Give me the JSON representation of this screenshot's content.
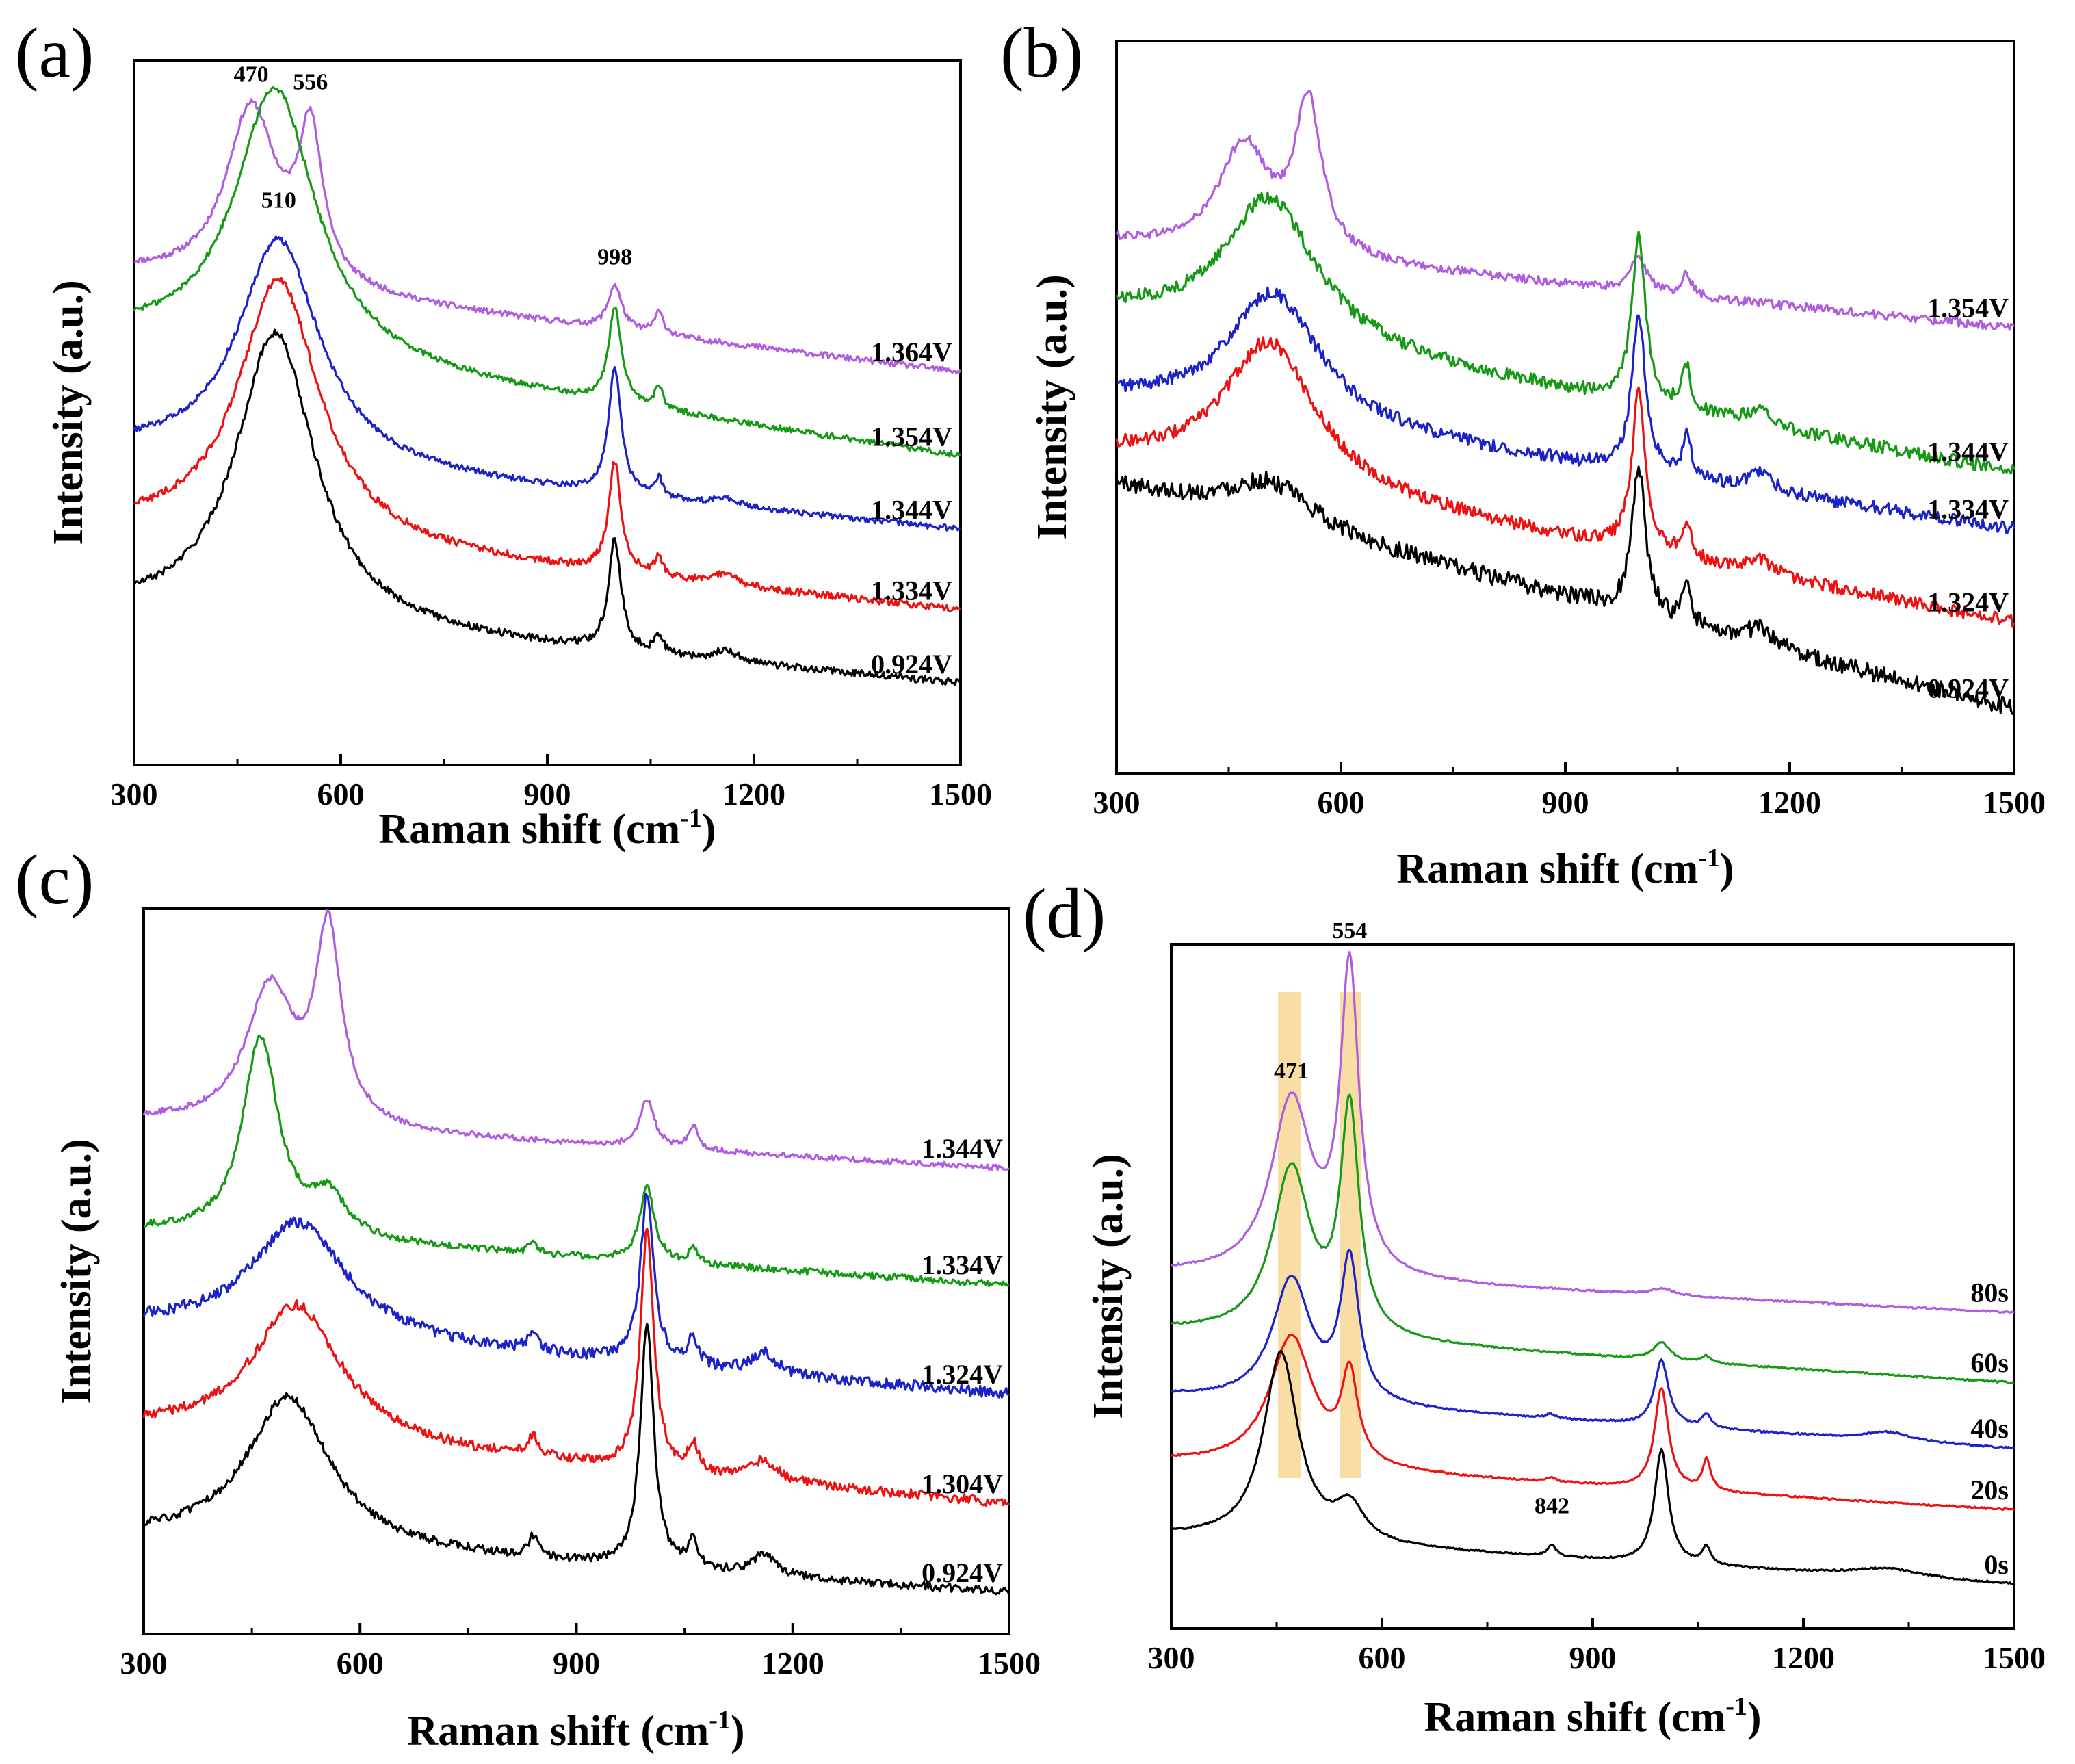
{
  "figure": {
    "panels": [
      "(a)",
      "(b)",
      "(c)",
      "(d)"
    ]
  },
  "colors": {
    "purple": "#B05CE0",
    "green": "#169A16",
    "blue": "#1B22C8",
    "red": "#EE1111",
    "black": "#000000",
    "highlight": "#F7D794"
  },
  "chart_data": [
    {
      "panel": "(a)",
      "type": "line",
      "xlabel": "Raman shift (cm",
      "xlabel_sup": "-1",
      "xlabel_close": ")",
      "ylabel": "Intensity (a.u.)",
      "xlim": [
        300,
        1500
      ],
      "xticks": [
        "300",
        "600",
        "900",
        "1200",
        "1500"
      ],
      "yticks": "none",
      "annotations": [
        {
          "text": "470",
          "x": 470
        },
        {
          "text": "556",
          "x": 556
        },
        {
          "text": "998",
          "x": 998
        },
        {
          "text": "510",
          "x": 510
        }
      ],
      "series": [
        {
          "name": "1.364V",
          "color": "purple",
          "base_start": 6.1,
          "base_end": 4.75,
          "peaks": [
            [
              470,
              2.4,
              45
            ],
            [
              556,
              2.0,
              22
            ],
            [
              998,
              0.6,
              12
            ],
            [
              1062,
              0.3,
              8
            ]
          ],
          "noise": 0.04
        },
        {
          "name": "1.354V",
          "color": "green",
          "base_start": 5.2,
          "base_end": 3.6,
          "peaks": [
            [
              505,
              3.7,
              72
            ],
            [
              998,
              1.3,
              11
            ],
            [
              1062,
              0.3,
              7
            ]
          ],
          "noise": 0.04
        },
        {
          "name": "1.344V",
          "color": "blue",
          "base_start": 3.65,
          "base_end": 2.6,
          "peaks": [
            [
              510,
              3.1,
              72
            ],
            [
              998,
              1.7,
              11
            ],
            [
              1062,
              0.25,
              7
            ],
            [
              1160,
              0.1,
              20
            ]
          ],
          "noise": 0.04
        },
        {
          "name": "1.334V",
          "color": "red",
          "base_start": 2.6,
          "base_end": 1.5,
          "peaks": [
            [
              510,
              3.6,
              72
            ],
            [
              998,
              1.5,
              11
            ],
            [
              1062,
              0.25,
              7
            ],
            [
              1160,
              0.15,
              20
            ]
          ],
          "noise": 0.05
        },
        {
          "name": "0.924V",
          "color": "black",
          "base_start": 1.45,
          "base_end": 0.5,
          "peaks": [
            [
              505,
              4.0,
              70
            ],
            [
              998,
              1.5,
              11
            ],
            [
              1062,
              0.25,
              7
            ],
            [
              1160,
              0.15,
              20
            ]
          ],
          "noise": 0.05
        }
      ]
    },
    {
      "panel": "(b)",
      "type": "line",
      "xlabel": "Raman shift (cm",
      "xlabel_sup": "-1",
      "xlabel_close": ")",
      "ylabel": "Intensity (a.u.)",
      "xlim": [
        300,
        1500
      ],
      "xticks": [
        "300",
        "600",
        "900",
        "1200",
        "1500"
      ],
      "yticks": "none",
      "annotations": [],
      "series": [
        {
          "name": "1.354V",
          "color": "purple",
          "base_start": 6.8,
          "base_end": 5.6,
          "peaks": [
            [
              470,
              1.5,
              40
            ],
            [
              556,
              2.1,
              22
            ],
            [
              998,
              0.5,
              12
            ],
            [
              1062,
              0.3,
              8
            ]
          ],
          "noise": 0.06
        },
        {
          "name": "1.344V",
          "color": "green",
          "base_start": 5.8,
          "base_end": 3.6,
          "peaks": [
            [
              505,
              2.0,
              75
            ],
            [
              998,
              2.3,
              11
            ],
            [
              1062,
              0.6,
              7
            ],
            [
              1160,
              0.2,
              20
            ]
          ],
          "noise": 0.09
        },
        {
          "name": "1.334V",
          "color": "blue",
          "base_start": 4.6,
          "base_end": 2.8,
          "peaks": [
            [
              510,
              1.8,
              75
            ],
            [
              998,
              2.2,
              11
            ],
            [
              1062,
              0.6,
              7
            ],
            [
              1160,
              0.25,
              20
            ]
          ],
          "noise": 0.09
        },
        {
          "name": "1.324V",
          "color": "red",
          "base_start": 3.8,
          "base_end": 1.5,
          "peaks": [
            [
              505,
              2.0,
              75
            ],
            [
              998,
              2.2,
              11
            ],
            [
              1062,
              0.5,
              7
            ],
            [
              1160,
              0.2,
              20
            ]
          ],
          "noise": 0.09
        },
        {
          "name": "0.924V",
          "color": "black",
          "base_start": 3.4,
          "base_end": 0.3,
          "peaks": [
            [
              505,
              0.6,
              70
            ],
            [
              998,
              2.1,
              11
            ],
            [
              1062,
              0.5,
              7
            ],
            [
              1160,
              0.25,
              20
            ]
          ],
          "noise": 0.12
        }
      ]
    },
    {
      "panel": "(c)",
      "type": "line",
      "xlabel": "Raman shift (cm",
      "xlabel_sup": "-1",
      "xlabel_close": ")",
      "ylabel": "Intensity (a.u.)",
      "xlim": [
        300,
        1500
      ],
      "xticks": [
        "300",
        "600",
        "900",
        "1200",
        "1500"
      ],
      "yticks": "none",
      "annotations": [],
      "series": [
        {
          "name": "1.344V",
          "color": "purple",
          "base_start": 6.9,
          "base_end": 6.2,
          "peaks": [
            [
              475,
              2.0,
              40
            ],
            [
              556,
              2.8,
              22
            ],
            [
              998,
              0.7,
              12
            ],
            [
              1062,
              0.35,
              8
            ]
          ],
          "noise": 0.04
        },
        {
          "name": "1.334V",
          "color": "green",
          "base_start": 5.3,
          "base_end": 4.5,
          "peaks": [
            [
              462,
              2.9,
              30
            ],
            [
              556,
              0.6,
              30
            ],
            [
              840,
              0.15,
              8
            ],
            [
              998,
              1.1,
              12
            ],
            [
              1062,
              0.2,
              8
            ]
          ],
          "noise": 0.05
        },
        {
          "name": "1.324V",
          "color": "blue",
          "base_start": 3.9,
          "base_end": 2.9,
          "peaks": [
            [
              515,
              1.7,
              80
            ],
            [
              840,
              0.3,
              8
            ],
            [
              998,
              2.5,
              11
            ],
            [
              1062,
              0.4,
              8
            ],
            [
              1160,
              0.3,
              20
            ]
          ],
          "noise": 0.08
        },
        {
          "name": "1.304V",
          "color": "red",
          "base_start": 2.4,
          "base_end": 1.3,
          "peaks": [
            [
              512,
              2.0,
              75
            ],
            [
              840,
              0.3,
              8
            ],
            [
              998,
              3.5,
              11
            ],
            [
              1062,
              0.4,
              8
            ],
            [
              1160,
              0.3,
              20
            ]
          ],
          "noise": 0.07
        },
        {
          "name": "0.924V",
          "color": "black",
          "base_start": 0.8,
          "base_end": 0.0,
          "peaks": [
            [
              500,
              2.2,
              70
            ],
            [
              840,
              0.3,
              8
            ],
            [
              998,
              3.6,
              11
            ],
            [
              1062,
              0.4,
              8
            ],
            [
              1160,
              0.3,
              20
            ]
          ],
          "noise": 0.06
        }
      ]
    },
    {
      "panel": "(d)",
      "type": "line",
      "xlabel": "Raman shift (cm",
      "xlabel_sup": "-1",
      "xlabel_close": ")",
      "ylabel": "Intensity (a.u.)",
      "xlim": [
        300,
        1500
      ],
      "xticks": [
        "300",
        "600",
        "900",
        "1200",
        "1500"
      ],
      "yticks": "none",
      "annotations": [
        {
          "text": "471",
          "x": 471
        },
        {
          "text": "554",
          "x": 554
        },
        {
          "text": "842",
          "x": 842
        }
      ],
      "highlight_bands": [
        [
          452,
          484
        ],
        [
          540,
          570
        ]
      ],
      "series": [
        {
          "name": "80s",
          "color": "purple",
          "base_start": 7.5,
          "base_end": 6.6,
          "peaks": [
            [
              471,
              4.0,
              35
            ],
            [
              554,
              6.9,
              16
            ],
            [
              998,
              0.15,
              20
            ]
          ],
          "noise": 0.02
        },
        {
          "name": "60s",
          "color": "green",
          "base_start": 6.2,
          "base_end": 5.0,
          "peaks": [
            [
              471,
              3.8,
              33
            ],
            [
              554,
              5.1,
              16
            ],
            [
              998,
              0.4,
              14
            ],
            [
              1062,
              0.15,
              8
            ]
          ],
          "noise": 0.02
        },
        {
          "name": "40s",
          "color": "blue",
          "base_start": 4.7,
          "base_end": 3.5,
          "peaks": [
            [
              471,
              2.8,
              33
            ],
            [
              554,
              3.2,
              16
            ],
            [
              840,
              0.1,
              8
            ],
            [
              998,
              1.5,
              12
            ],
            [
              1062,
              0.3,
              8
            ],
            [
              1320,
              0.2,
              40
            ]
          ],
          "noise": 0.02
        },
        {
          "name": "20s",
          "color": "red",
          "base_start": 3.2,
          "base_end": 2.1,
          "peaks": [
            [
              471,
              3.0,
              38
            ],
            [
              554,
              2.0,
              14
            ],
            [
              840,
              0.1,
              8
            ],
            [
              998,
              2.3,
              12
            ],
            [
              1062,
              0.7,
              7
            ]
          ],
          "noise": 0.02
        },
        {
          "name": "0s",
          "color": "black",
          "base_start": 1.5,
          "base_end": 0.4,
          "peaks": [
            [
              456,
              4.3,
              30
            ],
            [
              554,
              0.8,
              25
            ],
            [
              842,
              0.25,
              8
            ],
            [
              998,
              2.6,
              12
            ],
            [
              1062,
              0.4,
              7
            ],
            [
              1320,
              0.2,
              60
            ]
          ],
          "noise": 0.02
        }
      ]
    }
  ]
}
